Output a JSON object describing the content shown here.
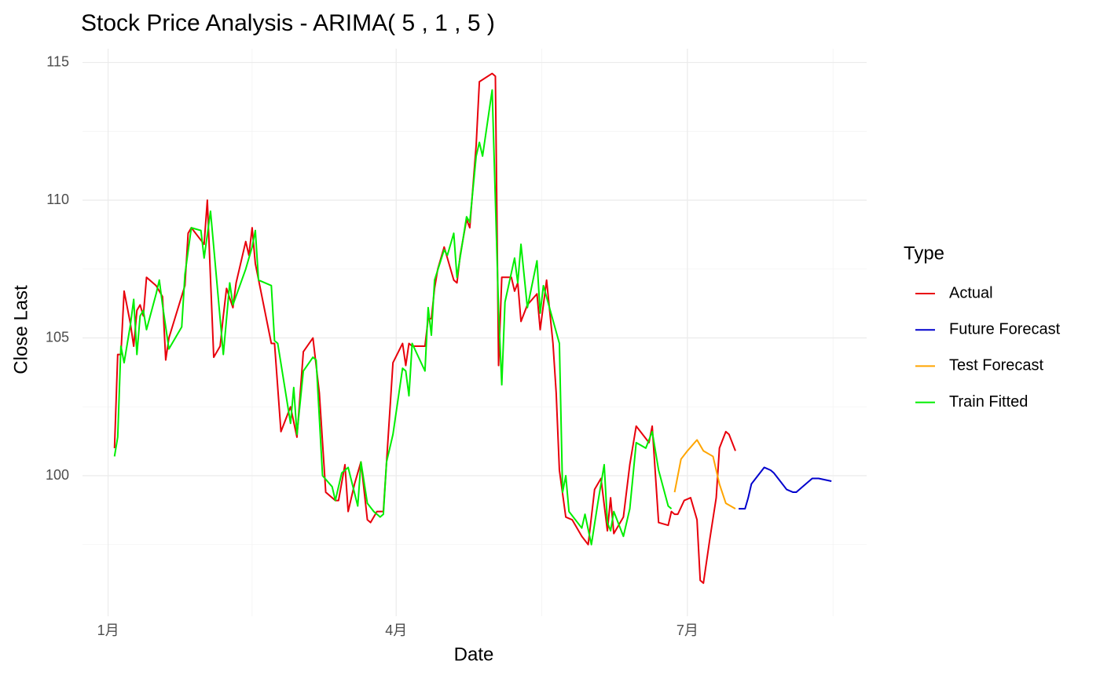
{
  "chart_data": {
    "type": "line",
    "title": "Stock Price Analysis - ARIMA( 5 , 1 , 5 )",
    "x_label": "Date",
    "y_label": "Close Last",
    "legend_title": "Type",
    "legend_position": "right",
    "grid": true,
    "xlim": [
      -8,
      237
    ],
    "xticks": [
      {
        "value": 0,
        "label": "1月"
      },
      {
        "value": 90,
        "label": "4月"
      },
      {
        "value": 181,
        "label": "7月"
      }
    ],
    "ylim": [
      94.9,
      115.5
    ],
    "yticks": [
      100,
      105,
      110,
      115
    ],
    "series": [
      {
        "name": "Actual",
        "color": "#e8000b",
        "x": [
          2,
          3,
          4,
          5,
          7,
          8,
          9,
          10,
          11,
          12,
          15,
          17,
          18,
          19,
          24,
          25,
          26,
          30,
          31,
          33,
          35,
          36,
          37,
          39,
          40,
          43,
          44,
          45,
          46,
          51,
          52,
          54,
          57,
          59,
          61,
          64,
          66,
          68,
          71,
          72,
          74,
          75,
          77,
          79,
          81,
          82,
          84,
          86,
          87,
          89,
          92,
          93,
          94,
          95,
          99,
          100,
          101,
          102,
          103,
          105,
          106,
          108,
          109,
          110,
          112,
          113,
          115,
          116,
          120,
          121,
          122,
          123,
          126,
          127,
          128,
          129,
          131,
          134,
          135,
          137,
          139,
          140,
          141,
          143,
          145,
          148,
          150,
          152,
          154,
          156,
          157,
          158,
          161,
          163,
          165,
          169,
          170,
          172,
          175,
          176,
          177,
          178,
          180,
          182,
          184,
          185,
          186,
          188,
          190,
          191,
          193,
          194,
          196
        ],
        "values": [
          101.0,
          104.4,
          104.4,
          106.7,
          105.5,
          104.7,
          106.0,
          106.2,
          105.8,
          107.2,
          106.9,
          106.5,
          104.2,
          105.0,
          106.9,
          108.8,
          109.0,
          108.4,
          110.0,
          104.3,
          104.7,
          105.8,
          106.8,
          106.1,
          107.0,
          108.5,
          108.0,
          109.0,
          107.7,
          104.8,
          104.8,
          101.6,
          102.5,
          101.4,
          104.5,
          105.0,
          103.0,
          99.4,
          99.1,
          99.1,
          100.4,
          98.7,
          99.7,
          100.5,
          98.4,
          98.3,
          98.7,
          98.7,
          100.5,
          104.1,
          104.8,
          104.0,
          104.8,
          104.7,
          104.7,
          105.7,
          105.7,
          106.8,
          107.5,
          108.3,
          107.9,
          107.1,
          107.0,
          108.0,
          109.3,
          109.0,
          112.0,
          114.3,
          114.6,
          114.5,
          104.0,
          107.2,
          107.2,
          106.7,
          107.0,
          105.6,
          106.2,
          106.6,
          105.3,
          107.1,
          104.8,
          103.0,
          100.2,
          98.5,
          98.4,
          97.8,
          97.5,
          99.5,
          99.9,
          98.0,
          99.2,
          97.9,
          98.5,
          100.4,
          101.8,
          101.2,
          101.8,
          98.3,
          98.2,
          98.7,
          98.6,
          98.6,
          99.1,
          99.2,
          98.4,
          96.2,
          96.1,
          97.7,
          99.2,
          101.0,
          101.6,
          101.5,
          100.9
        ]
      },
      {
        "name": "Future Forecast",
        "color": "#0000cd",
        "x": [
          197,
          199,
          200,
          201,
          203,
          205,
          207,
          208,
          210,
          212,
          214,
          215,
          217,
          219,
          220,
          222,
          224,
          226
        ],
        "values": [
          98.8,
          98.8,
          99.2,
          99.7,
          100.0,
          100.3,
          100.2,
          100.1,
          99.8,
          99.5,
          99.4,
          99.4,
          99.6,
          99.8,
          99.9,
          99.9,
          99.85,
          99.8
        ]
      },
      {
        "name": "Test Forecast",
        "color": "#ffa500",
        "x": [
          177,
          179,
          181,
          184,
          186,
          189,
          191,
          193,
          196
        ],
        "values": [
          99.4,
          100.6,
          100.9,
          101.3,
          100.9,
          100.7,
          99.7,
          99.0,
          98.8
        ]
      },
      {
        "name": "Train Fitted",
        "color": "#00ee00",
        "x": [
          2,
          3,
          4,
          5,
          7,
          8,
          9,
          10,
          11,
          12,
          15,
          16,
          17,
          19,
          23,
          24,
          26,
          29,
          30,
          32,
          34,
          36,
          38,
          39,
          43,
          45,
          46,
          47,
          51,
          52,
          53,
          57,
          58,
          59,
          61,
          64,
          65,
          67,
          70,
          71,
          73,
          75,
          78,
          79,
          81,
          83,
          85,
          86,
          87,
          89,
          92,
          93,
          94,
          95,
          99,
          100,
          101,
          102,
          105,
          106,
          108,
          109,
          112,
          113,
          115,
          116,
          117,
          120,
          122,
          123,
          124,
          127,
          128,
          129,
          131,
          134,
          135,
          136,
          141,
          142,
          143,
          144,
          148,
          149,
          151,
          153,
          155,
          156,
          157,
          158,
          161,
          163,
          165,
          168,
          170,
          172,
          175,
          176
        ],
        "values": [
          100.7,
          101.4,
          104.7,
          104.1,
          105.5,
          106.4,
          104.4,
          105.8,
          106.0,
          105.3,
          106.6,
          107.1,
          106.2,
          104.6,
          105.4,
          107.3,
          109.0,
          108.9,
          107.9,
          109.6,
          107.0,
          104.4,
          107.0,
          106.2,
          107.5,
          108.3,
          108.9,
          107.1,
          106.9,
          104.9,
          104.8,
          101.9,
          103.2,
          101.5,
          103.8,
          104.3,
          104.2,
          100.0,
          99.6,
          99.1,
          100.1,
          100.3,
          98.9,
          100.5,
          99.0,
          98.7,
          98.5,
          98.6,
          100.5,
          101.5,
          103.9,
          103.8,
          102.9,
          104.8,
          103.8,
          106.1,
          105.1,
          107.1,
          108.2,
          108.0,
          108.8,
          107.2,
          109.4,
          109.2,
          111.6,
          112.1,
          111.6,
          114.0,
          106.0,
          103.3,
          106.3,
          107.9,
          107.0,
          108.4,
          106.1,
          107.8,
          105.9,
          106.9,
          104.8,
          99.4,
          100.0,
          98.7,
          98.1,
          98.6,
          97.5,
          99.0,
          100.4,
          98.3,
          98.0,
          98.7,
          97.8,
          98.8,
          101.2,
          101.0,
          101.6,
          100.2,
          98.9,
          98.8
        ]
      }
    ]
  }
}
